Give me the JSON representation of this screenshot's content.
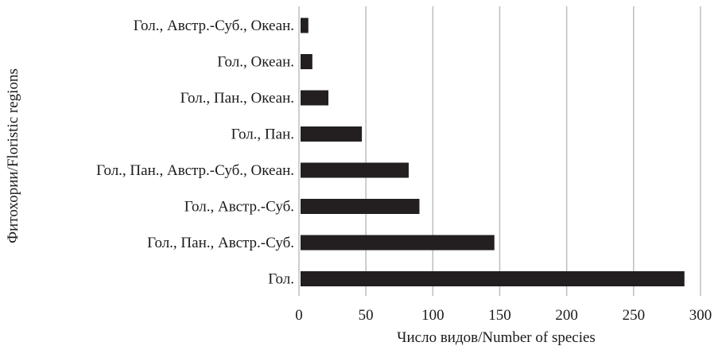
{
  "chart_data": {
    "type": "bar",
    "orientation": "horizontal",
    "categories": [
      "Гол., Австр.-Суб., Океан.",
      "Гол., Океан.",
      "Гол., Пан., Океан.",
      "Гол., Пан.",
      "Гол., Пан., Австр.-Суб., Океан.",
      "Гол., Австр.-Суб.",
      "Гол., Пан., Австр.-Суб.",
      "Гол."
    ],
    "values": [
      7,
      10,
      22,
      47,
      82,
      90,
      146,
      288
    ],
    "title": "",
    "xlabel": "Число видов/Number of species",
    "ylabel": "Фитохории/Floristic regions",
    "xlim": [
      0,
      300
    ],
    "xticks": [
      "0",
      "50",
      "100",
      "150",
      "200",
      "250",
      "300"
    ],
    "grid": "vertical",
    "legend": "none",
    "bar_color": "#231f20",
    "grid_color": "#bdbdbd"
  }
}
